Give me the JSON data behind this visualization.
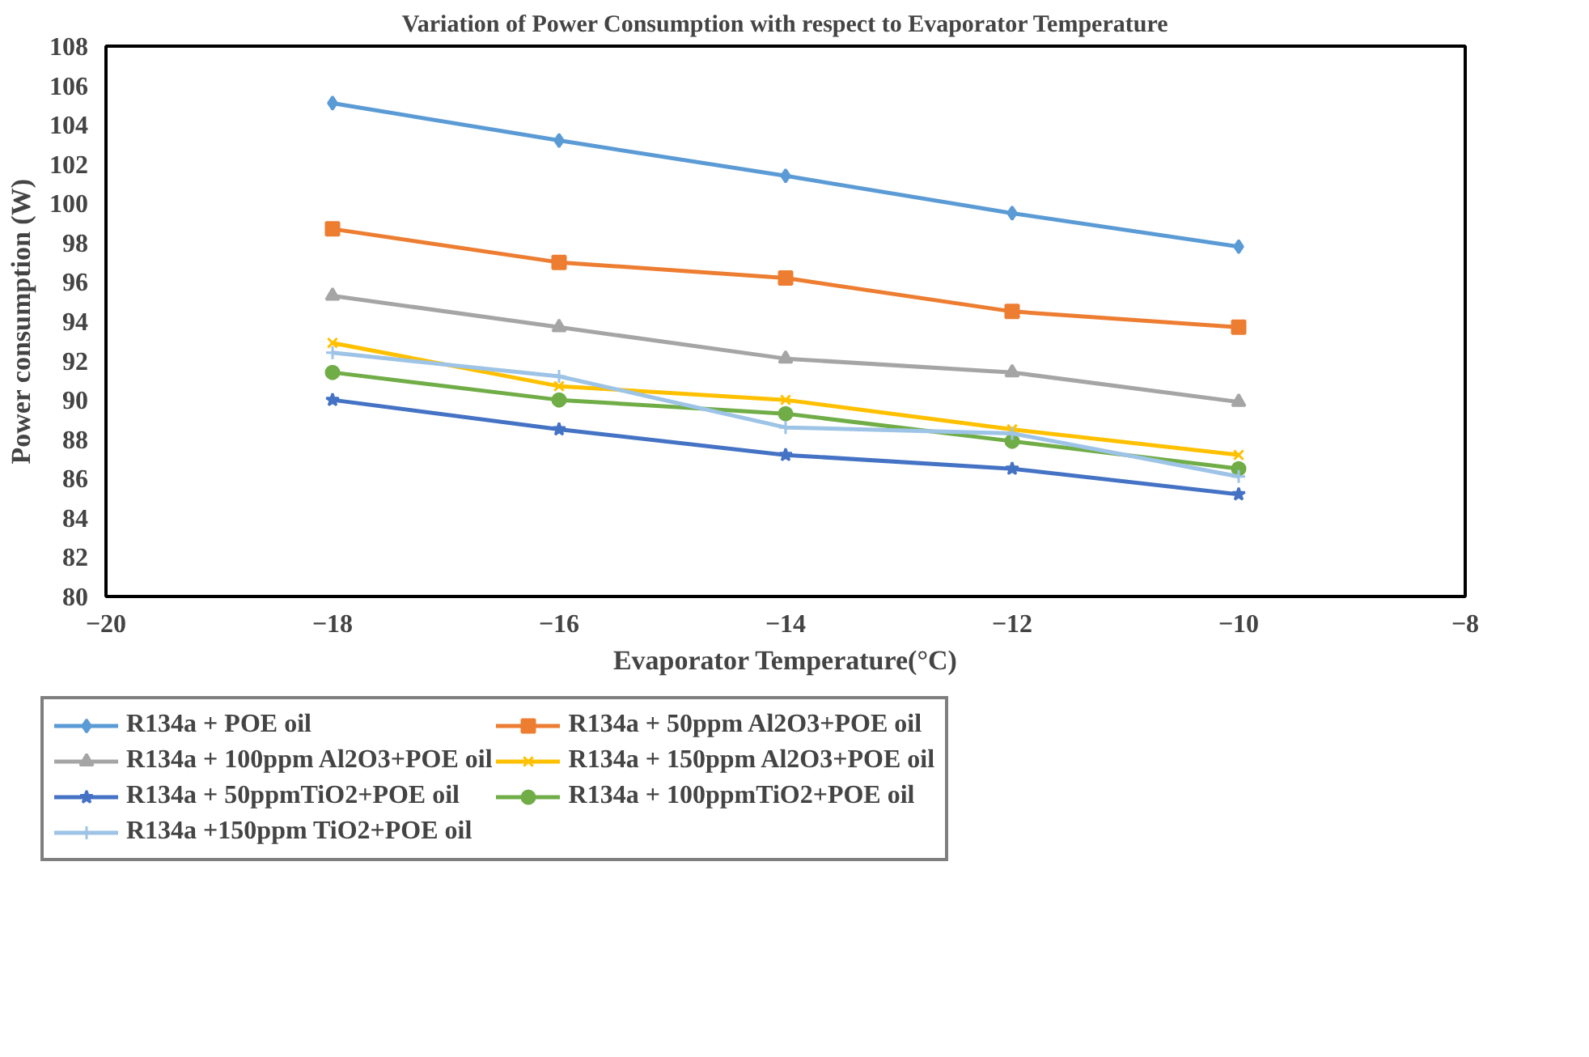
{
  "chart_data": {
    "type": "line",
    "title": "Variation of Power Consumption with respect to Evaporator Temperature",
    "xlabel": "Evaporator Temperature(°C)",
    "ylabel": "Power consumption (W)",
    "x": [
      -18,
      -16,
      -14,
      -12,
      -10
    ],
    "xlim": [
      -20,
      -8
    ],
    "xticks": [
      -20,
      -18,
      -16,
      -14,
      -12,
      -10,
      -8
    ],
    "ylim": [
      80,
      108
    ],
    "yticks": [
      80,
      82,
      84,
      86,
      88,
      90,
      92,
      94,
      96,
      98,
      100,
      102,
      104,
      106,
      108
    ],
    "grid": false,
    "legend": "bottom",
    "series": [
      {
        "name": "R134a + POE oil",
        "color": "#5b9bd5",
        "marker": "diamond",
        "values": [
          105.1,
          103.2,
          101.4,
          99.5,
          97.8
        ]
      },
      {
        "name": "R134a + 50ppm Al2O3+POE oil",
        "color": "#ed7d31",
        "marker": "square",
        "values": [
          98.7,
          97.0,
          96.2,
          94.5,
          93.7
        ]
      },
      {
        "name": "R134a + 100ppm Al2O3+POE oil",
        "color": "#a5a5a5",
        "marker": "triangle",
        "values": [
          95.3,
          93.7,
          92.1,
          91.4,
          89.9
        ]
      },
      {
        "name": "R134a + 150ppm Al2O3+POE oil",
        "color": "#ffc000",
        "marker": "x",
        "values": [
          92.9,
          90.7,
          90.0,
          88.5,
          87.2
        ]
      },
      {
        "name": "R134a + 50ppmTiO2+POE oil",
        "color": "#4472c4",
        "marker": "star",
        "values": [
          90.0,
          88.5,
          87.2,
          86.5,
          85.2
        ]
      },
      {
        "name": "R134a + 100ppmTiO2+POE oil",
        "color": "#70ad47",
        "marker": "circle",
        "values": [
          91.4,
          90.0,
          89.3,
          87.9,
          86.5
        ]
      },
      {
        "name": "R134a +150ppm TiO2+POE oil",
        "color": "#9dc3e6",
        "marker": "cross",
        "values": [
          92.4,
          91.2,
          88.6,
          88.3,
          86.1
        ]
      }
    ]
  }
}
